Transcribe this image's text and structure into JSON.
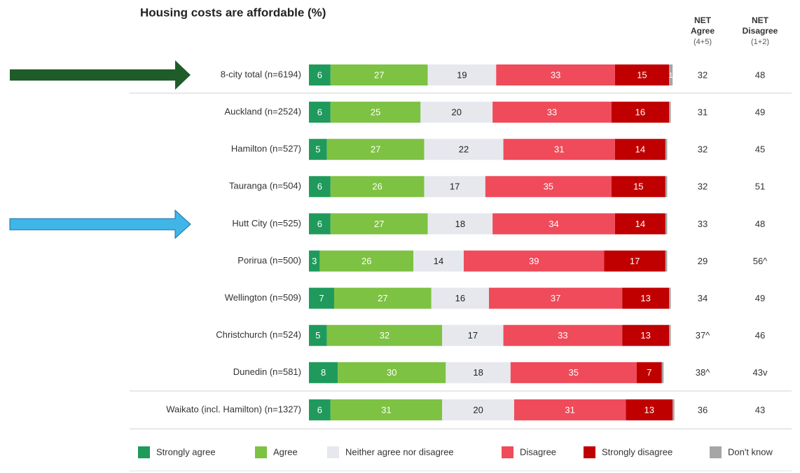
{
  "chart_data": {
    "type": "stacked_bar_horizontal",
    "title": "Housing costs are affordable (%)",
    "categories": [
      "8-city total (n=6194)",
      "Auckland (n=2524)",
      "Hamilton (n=527)",
      "Tauranga (n=504)",
      "Hutt City (n=525)",
      "Porirua (n=500)",
      "Wellington (n=509)",
      "Christchurch (n=524)",
      "Dunedin (n=581)",
      "Waikato (incl. Hamilton) (n=1327)"
    ],
    "series": [
      {
        "name": "Strongly agree",
        "color": "#1f9a5c",
        "values": [
          6,
          6,
          5,
          6,
          6,
          3,
          7,
          5,
          8,
          6
        ]
      },
      {
        "name": "Agree",
        "color": "#7dc242",
        "values": [
          27,
          25,
          27,
          26,
          27,
          26,
          27,
          32,
          30,
          31
        ]
      },
      {
        "name": "Neither agree nor disagree",
        "color": "#e6e8ee",
        "values": [
          19,
          20,
          22,
          17,
          18,
          14,
          16,
          17,
          18,
          20
        ]
      },
      {
        "name": "Disagree",
        "color": "#ef4b5b",
        "values": [
          33,
          33,
          31,
          35,
          34,
          39,
          37,
          33,
          35,
          31
        ]
      },
      {
        "name": "Strongly disagree",
        "color": "#c00000",
        "values": [
          15,
          16,
          14,
          15,
          14,
          17,
          13,
          13,
          7,
          13
        ]
      },
      {
        "name": "Don't know",
        "color": "#a6a6a6",
        "values": [
          1,
          0.5,
          0.5,
          0.5,
          0.5,
          0.5,
          0.5,
          0.5,
          0.5,
          0.5
        ]
      }
    ],
    "xlim": [
      0,
      100
    ],
    "net_agree": {
      "header": [
        "NET",
        "Agree"
      ],
      "subheader": "(4+5)",
      "values": [
        32,
        31,
        32,
        32,
        33,
        29,
        34,
        37,
        38,
        36
      ],
      "value_labels": [
        "32",
        "31",
        "32",
        "32",
        "33",
        "29",
        "34",
        "37^",
        "38^",
        "36"
      ]
    },
    "net_disagree": {
      "header": [
        "NET",
        "Disagree"
      ],
      "subheader": "(1+2)",
      "values": [
        48,
        49,
        45,
        51,
        48,
        56,
        49,
        46,
        43,
        43
      ],
      "value_labels": [
        "48",
        "49",
        "45",
        "51",
        "48",
        "56^",
        "49",
        "46",
        "43v",
        "43"
      ]
    }
  }
}
